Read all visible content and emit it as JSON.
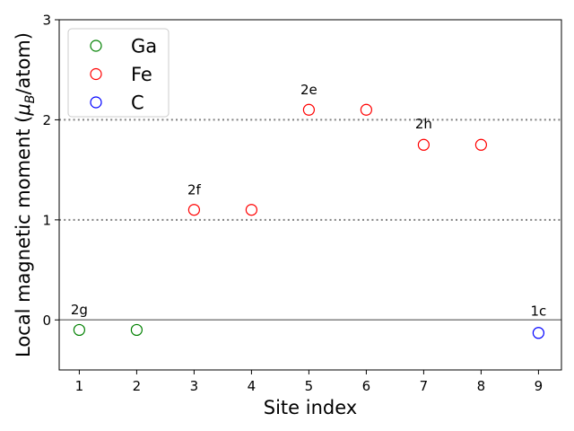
{
  "chart_data": {
    "type": "scatter",
    "xlabel": "Site index",
    "ylabel_prefix": "Local magnetic moment (",
    "ylabel_mu": "μ",
    "ylabel_sub": "B",
    "ylabel_suffix": "/atom)",
    "xlim": [
      0.65,
      9.4
    ],
    "ylim": [
      -0.5,
      3.0
    ],
    "xticks": [
      1,
      2,
      3,
      4,
      5,
      6,
      7,
      8,
      9
    ],
    "yticks": [
      0,
      1,
      2,
      3
    ],
    "reference_lines": [
      {
        "y": 0,
        "style": "solid",
        "color": "#808080"
      },
      {
        "y": 1,
        "style": "dotted",
        "color": "#808080"
      },
      {
        "y": 2,
        "style": "dotted",
        "color": "#808080"
      }
    ],
    "series": [
      {
        "name": "Ga",
        "color": "#008000",
        "marker": "open-circle",
        "points": [
          {
            "x": 1,
            "y": -0.1
          },
          {
            "x": 2,
            "y": -0.1
          }
        ]
      },
      {
        "name": "Fe",
        "color": "#ff0000",
        "marker": "open-circle",
        "points": [
          {
            "x": 3,
            "y": 1.1
          },
          {
            "x": 4,
            "y": 1.1
          },
          {
            "x": 5,
            "y": 2.1
          },
          {
            "x": 6,
            "y": 2.1
          },
          {
            "x": 7,
            "y": 1.75
          },
          {
            "x": 8,
            "y": 1.75
          }
        ]
      },
      {
        "name": "C",
        "color": "#0000ff",
        "marker": "open-circle",
        "points": [
          {
            "x": 9,
            "y": -0.13
          }
        ]
      }
    ],
    "annotations": [
      {
        "text": "2g",
        "x": 1,
        "y": 0.1
      },
      {
        "text": "2f",
        "x": 3,
        "y": 1.3
      },
      {
        "text": "2e",
        "x": 5,
        "y": 2.3
      },
      {
        "text": "2h",
        "x": 7,
        "y": 1.96
      },
      {
        "text": "1c",
        "x": 9,
        "y": 0.09
      }
    ],
    "legend_position": "top-left",
    "grid": false
  }
}
